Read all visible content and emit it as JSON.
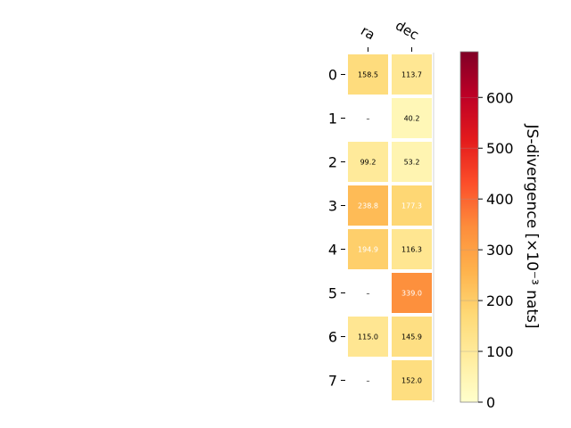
{
  "chart_data": {
    "type": "heatmap",
    "x_labels": [
      "ra",
      "dec"
    ],
    "y_labels": [
      "0",
      "1",
      "2",
      "3",
      "4",
      "5",
      "6",
      "7"
    ],
    "values": [
      [
        158.5,
        113.7
      ],
      [
        null,
        40.2
      ],
      [
        99.2,
        53.2
      ],
      [
        238.8,
        177.3
      ],
      [
        194.9,
        116.3
      ],
      [
        null,
        339.0
      ],
      [
        115.0,
        145.9
      ],
      [
        null,
        152.0
      ]
    ],
    "missing_label": "–",
    "colorbar": {
      "label": "JS-divergence [×10⁻³ nats]",
      "range": [
        0,
        690
      ],
      "ticks": [
        0,
        100,
        200,
        300,
        400,
        500,
        600
      ],
      "colormap": "YlOrRd"
    }
  }
}
